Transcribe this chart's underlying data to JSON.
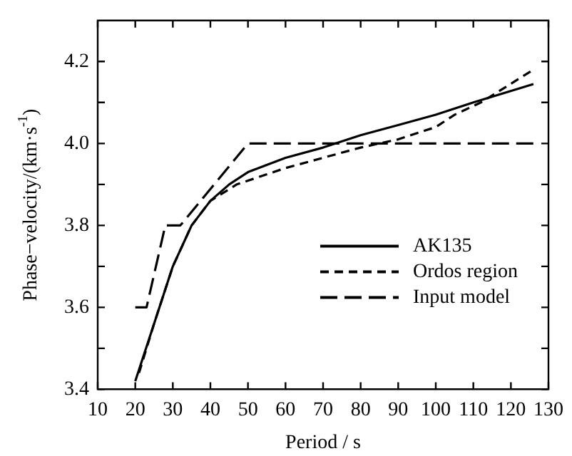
{
  "chart_data": {
    "type": "line",
    "xlabel": "Period / s",
    "ylabel": "Phase−velocity/(km·s$^{-1}$)",
    "xlim": [
      10,
      130
    ],
    "xticks": [
      10,
      20,
      30,
      40,
      50,
      60,
      70,
      80,
      90,
      100,
      110,
      120,
      130
    ],
    "ylim": [
      3.4,
      4.3
    ],
    "yticks": [
      {
        "value": 3.4,
        "label": "3.4"
      },
      {
        "value": 3.5,
        "label": null
      },
      {
        "value": 3.6,
        "label": "3.6"
      },
      {
        "value": 3.7,
        "label": null
      },
      {
        "value": 3.8,
        "label": "3.8"
      },
      {
        "value": 3.9,
        "label": null
      },
      {
        "value": 4.0,
        "label": "4.0"
      },
      {
        "value": 4.1,
        "label": null
      },
      {
        "value": 4.2,
        "label": "4.2"
      }
    ],
    "grid": false,
    "legend": "right",
    "marker": "none",
    "series": [
      {
        "name": "AK135",
        "color": "#000000",
        "line_style": "solid",
        "x": [
          20,
          25,
          30,
          35,
          40,
          45,
          50,
          60,
          70,
          80,
          90,
          100,
          110,
          126
        ],
        "values": [
          3.42,
          3.56,
          3.7,
          3.8,
          3.86,
          3.9,
          3.93,
          3.965,
          3.99,
          4.02,
          4.045,
          4.07,
          4.1,
          4.145
        ]
      },
      {
        "name": "Ordos region",
        "color": "#000000",
        "line_style": "dashed",
        "x": [
          21,
          25,
          30,
          35,
          40,
          47,
          60,
          70,
          80,
          90,
          100,
          105,
          112,
          126
        ],
        "values": [
          3.44,
          3.56,
          3.7,
          3.8,
          3.86,
          3.9,
          3.94,
          3.965,
          3.99,
          4.01,
          4.04,
          4.07,
          4.1,
          4.18
        ]
      },
      {
        "name": "Input model",
        "color": "#000000",
        "line_style": "dashed",
        "x": [
          20,
          23,
          28,
          32,
          50,
          126
        ],
        "values": [
          3.6,
          3.6,
          3.8,
          3.8,
          4.0,
          4.0
        ]
      }
    ]
  }
}
